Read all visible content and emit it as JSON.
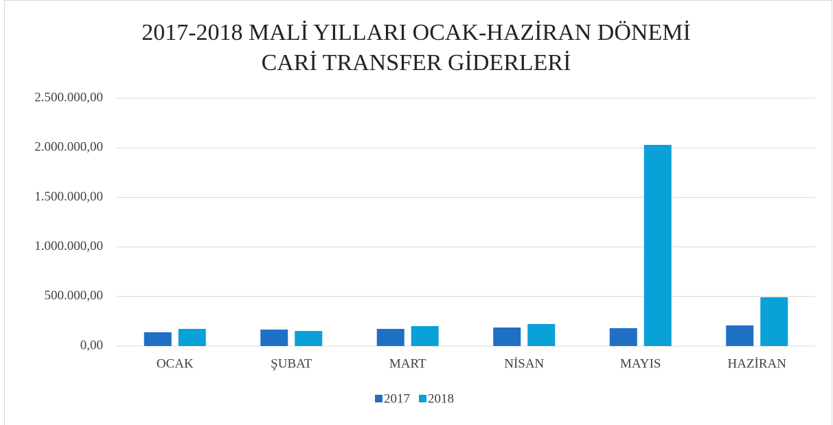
{
  "chart_data": {
    "type": "bar",
    "title": [
      "2017-2018 MALİ YILLARI OCAK-HAZİRAN DÖNEMİ",
      "CARİ TRANSFER GİDERLERİ"
    ],
    "categories": [
      "OCAK",
      "ŞUBAT",
      "MART",
      "NİSAN",
      "MAYIS",
      "HAZİRAN"
    ],
    "series": [
      {
        "name": "2017",
        "color": "#1f6fc5",
        "values": [
          139000,
          166000,
          173000,
          187000,
          180000,
          208000
        ]
      },
      {
        "name": "2018",
        "color": "#0aa0d8",
        "values": [
          173000,
          152000,
          201000,
          222000,
          2029000,
          492000
        ]
      }
    ],
    "ylim": [
      0,
      2500000
    ],
    "yticks": [
      {
        "value": 0,
        "label": "0,00"
      },
      {
        "value": 500000,
        "label": "500.000,00"
      },
      {
        "value": 1000000,
        "label": "1.000.000,00"
      },
      {
        "value": 1500000,
        "label": "1.500.000,00"
      },
      {
        "value": 2000000,
        "label": "2.000.000,00"
      },
      {
        "value": 2500000,
        "label": "2.500.000,00"
      }
    ],
    "grid": true,
    "legend": "bottom"
  }
}
